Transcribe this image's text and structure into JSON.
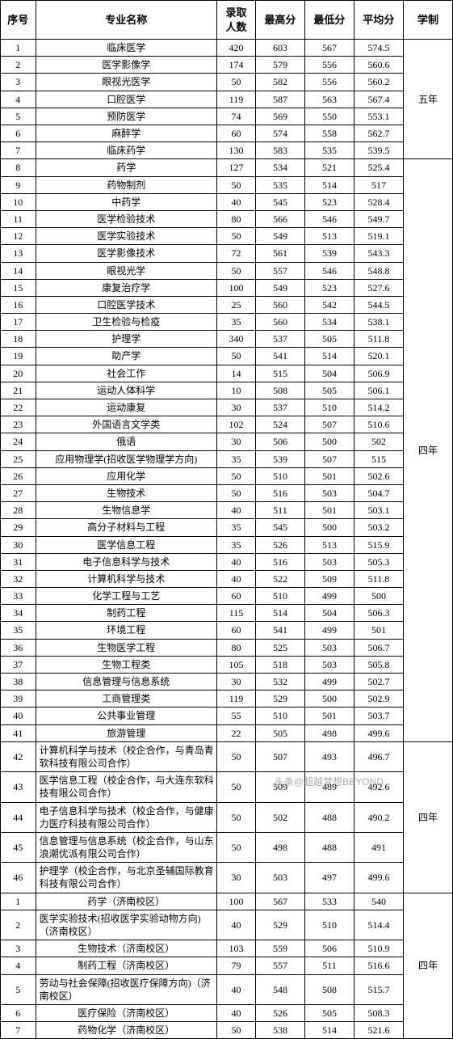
{
  "columns": {
    "c1": "序号",
    "c2": "专业名称",
    "c3_l1": "录取",
    "c3_l2": "人数",
    "c4": "最高分",
    "c5": "最低分",
    "c6": "平均分",
    "c7": "学制"
  },
  "widths": {
    "c1": 40,
    "c2": 206,
    "c3": 44,
    "c4": 56,
    "c5": 56,
    "c6": 56,
    "c7": 56
  },
  "colors": {
    "border": "#000000",
    "bg": "#ffffff",
    "text": "#000000"
  },
  "sections": [
    {
      "duration": "五年",
      "rows": [
        {
          "n": "1",
          "m": "临床医学",
          "a": "420",
          "b": "603",
          "c": "567",
          "d": "574.5"
        },
        {
          "n": "2",
          "m": "医学影像学",
          "a": "174",
          "b": "579",
          "c": "556",
          "d": "560.6"
        },
        {
          "n": "3",
          "m": "眼视光医学",
          "a": "50",
          "b": "582",
          "c": "556",
          "d": "560.2"
        },
        {
          "n": "4",
          "m": "口腔医学",
          "a": "119",
          "b": "587",
          "c": "563",
          "d": "567.4"
        },
        {
          "n": "5",
          "m": "预防医学",
          "a": "74",
          "b": "569",
          "c": "550",
          "d": "553.1"
        },
        {
          "n": "6",
          "m": "麻醉学",
          "a": "60",
          "b": "574",
          "c": "558",
          "d": "562.7"
        },
        {
          "n": "7",
          "m": "临床药学",
          "a": "130",
          "b": "583",
          "c": "535",
          "d": "539.5"
        }
      ]
    },
    {
      "duration": "四年",
      "rows": [
        {
          "n": "8",
          "m": "药学",
          "a": "127",
          "b": "534",
          "c": "521",
          "d": "525.4"
        },
        {
          "n": "9",
          "m": "药物制剂",
          "a": "50",
          "b": "535",
          "c": "514",
          "d": "517"
        },
        {
          "n": "10",
          "m": "中药学",
          "a": "40",
          "b": "545",
          "c": "523",
          "d": "528.4"
        },
        {
          "n": "11",
          "m": "医学检验技术",
          "a": "80",
          "b": "566",
          "c": "546",
          "d": "549.7"
        },
        {
          "n": "12",
          "m": "医学实验技术",
          "a": "50",
          "b": "549",
          "c": "513",
          "d": "519.1"
        },
        {
          "n": "13",
          "m": "医学影像技术",
          "a": "72",
          "b": "561",
          "c": "539",
          "d": "543.3"
        },
        {
          "n": "14",
          "m": "眼视光学",
          "a": "50",
          "b": "557",
          "c": "546",
          "d": "548.8"
        },
        {
          "n": "15",
          "m": "康复治疗学",
          "a": "100",
          "b": "549",
          "c": "523",
          "d": "527.6"
        },
        {
          "n": "16",
          "m": "口腔医学技术",
          "a": "25",
          "b": "560",
          "c": "542",
          "d": "544.5"
        },
        {
          "n": "17",
          "m": "卫生检验与检疫",
          "a": "35",
          "b": "560",
          "c": "534",
          "d": "538.1"
        },
        {
          "n": "18",
          "m": "护理学",
          "a": "340",
          "b": "537",
          "c": "505",
          "d": "511.8"
        },
        {
          "n": "19",
          "m": "助产学",
          "a": "50",
          "b": "541",
          "c": "514",
          "d": "520.1"
        },
        {
          "n": "20",
          "m": "社会工作",
          "a": "14",
          "b": "515",
          "c": "504",
          "d": "506.9"
        },
        {
          "n": "21",
          "m": "运动人体科学",
          "a": "10",
          "b": "508",
          "c": "505",
          "d": "506.1"
        },
        {
          "n": "22",
          "m": "运动康复",
          "a": "30",
          "b": "537",
          "c": "510",
          "d": "514.2"
        },
        {
          "n": "23",
          "m": "外国语言文学类",
          "a": "102",
          "b": "524",
          "c": "507",
          "d": "510.6"
        },
        {
          "n": "24",
          "m": "俄语",
          "a": "30",
          "b": "506",
          "c": "500",
          "d": "502"
        },
        {
          "n": "25",
          "m": "应用物理学(招收医学物理学方向)",
          "a": "35",
          "b": "539",
          "c": "507",
          "d": "515"
        },
        {
          "n": "26",
          "m": "应用化学",
          "a": "50",
          "b": "510",
          "c": "501",
          "d": "502.6"
        },
        {
          "n": "27",
          "m": "生物技术",
          "a": "50",
          "b": "516",
          "c": "503",
          "d": "504.7"
        },
        {
          "n": "28",
          "m": "生物信息学",
          "a": "40",
          "b": "511",
          "c": "501",
          "d": "503.1"
        },
        {
          "n": "29",
          "m": "高分子材料与工程",
          "a": "35",
          "b": "545",
          "c": "500",
          "d": "503.2"
        },
        {
          "n": "30",
          "m": "医学信息工程",
          "a": "35",
          "b": "526",
          "c": "513",
          "d": "515.9"
        },
        {
          "n": "31",
          "m": "电子信息科学与技术",
          "a": "40",
          "b": "516",
          "c": "503",
          "d": "505.3"
        },
        {
          "n": "32",
          "m": "计算机科学与技术",
          "a": "40",
          "b": "522",
          "c": "509",
          "d": "511.8"
        },
        {
          "n": "33",
          "m": "化学工程与工艺",
          "a": "60",
          "b": "510",
          "c": "499",
          "d": "500"
        },
        {
          "n": "34",
          "m": "制药工程",
          "a": "115",
          "b": "514",
          "c": "504",
          "d": "506.3"
        },
        {
          "n": "35",
          "m": "环境工程",
          "a": "60",
          "b": "541",
          "c": "499",
          "d": "501"
        },
        {
          "n": "36",
          "m": "生物医学工程",
          "a": "80",
          "b": "525",
          "c": "503",
          "d": "506.7"
        },
        {
          "n": "37",
          "m": "生物工程类",
          "a": "105",
          "b": "518",
          "c": "503",
          "d": "505.8"
        },
        {
          "n": "38",
          "m": "信息管理与信息系统",
          "a": "30",
          "b": "532",
          "c": "499",
          "d": "502.7"
        },
        {
          "n": "39",
          "m": "工商管理类",
          "a": "119",
          "b": "529",
          "c": "500",
          "d": "502.9"
        },
        {
          "n": "40",
          "m": "公共事业管理",
          "a": "55",
          "b": "510",
          "c": "501",
          "d": "503.7"
        },
        {
          "n": "41",
          "m": "旅游管理",
          "a": "22",
          "b": "505",
          "c": "498",
          "d": "499.6"
        }
      ]
    },
    {
      "duration": "四年",
      "rows": [
        {
          "n": "42",
          "m": "计算机科学与技术（校企合作，与青岛青软科技有限公司合作）",
          "a": "50",
          "b": "507",
          "c": "493",
          "d": "496.7",
          "multi": true
        },
        {
          "n": "43",
          "m": "医学信息工程（校企合作，与大连东软科技有限公司合作）",
          "a": "50",
          "b": "509",
          "c": "489",
          "d": "492.6",
          "multi": true
        },
        {
          "n": "44",
          "m": "电子信息科学与技术（校企合作，与健康力医疗科技有限公司合作）",
          "a": "50",
          "b": "502",
          "c": "488",
          "d": "490.2",
          "multi": true
        },
        {
          "n": "45",
          "m": "信息管理与信息系统（校企合作，与山东浪潮优派有限公司合作）",
          "a": "50",
          "b": "498",
          "c": "488",
          "d": "491",
          "multi": true
        },
        {
          "n": "46",
          "m": "护理学（校企合作，与北京圣辅国际教育科技有限公司合作）",
          "a": "30",
          "b": "503",
          "c": "497",
          "d": "499.6",
          "multi": true
        }
      ]
    },
    {
      "duration": "四年",
      "rows": [
        {
          "n": "1",
          "m": "药学（济南校区）",
          "a": "100",
          "b": "567",
          "c": "533",
          "d": "540"
        },
        {
          "n": "2",
          "m": "医学实验技术(招收医学实验动物方向)（济南校区）",
          "a": "40",
          "b": "529",
          "c": "510",
          "d": "514.4",
          "multi": true
        },
        {
          "n": "3",
          "m": "生物技术（济南校区）",
          "a": "103",
          "b": "559",
          "c": "506",
          "d": "510.9"
        },
        {
          "n": "4",
          "m": "制药工程（济南校区）",
          "a": "79",
          "b": "557",
          "c": "511",
          "d": "516.6"
        },
        {
          "n": "5",
          "m": "劳动与社会保障(招收医疗保障方向)（济南校区）",
          "a": "40",
          "b": "548",
          "c": "508",
          "d": "515.7",
          "multi": true
        },
        {
          "n": "6",
          "m": "医疗保险（济南校区）",
          "a": "40",
          "b": "526",
          "c": "505",
          "d": "508.3"
        },
        {
          "n": "7",
          "m": "药物化学（济南校区）",
          "a": "50",
          "b": "538",
          "c": "514",
          "d": "521.6"
        }
      ]
    }
  ],
  "watermarks": {
    "w1": "头条@超越梦想BEYOND",
    "w2": "头条@超越梦想BEYOND"
  }
}
